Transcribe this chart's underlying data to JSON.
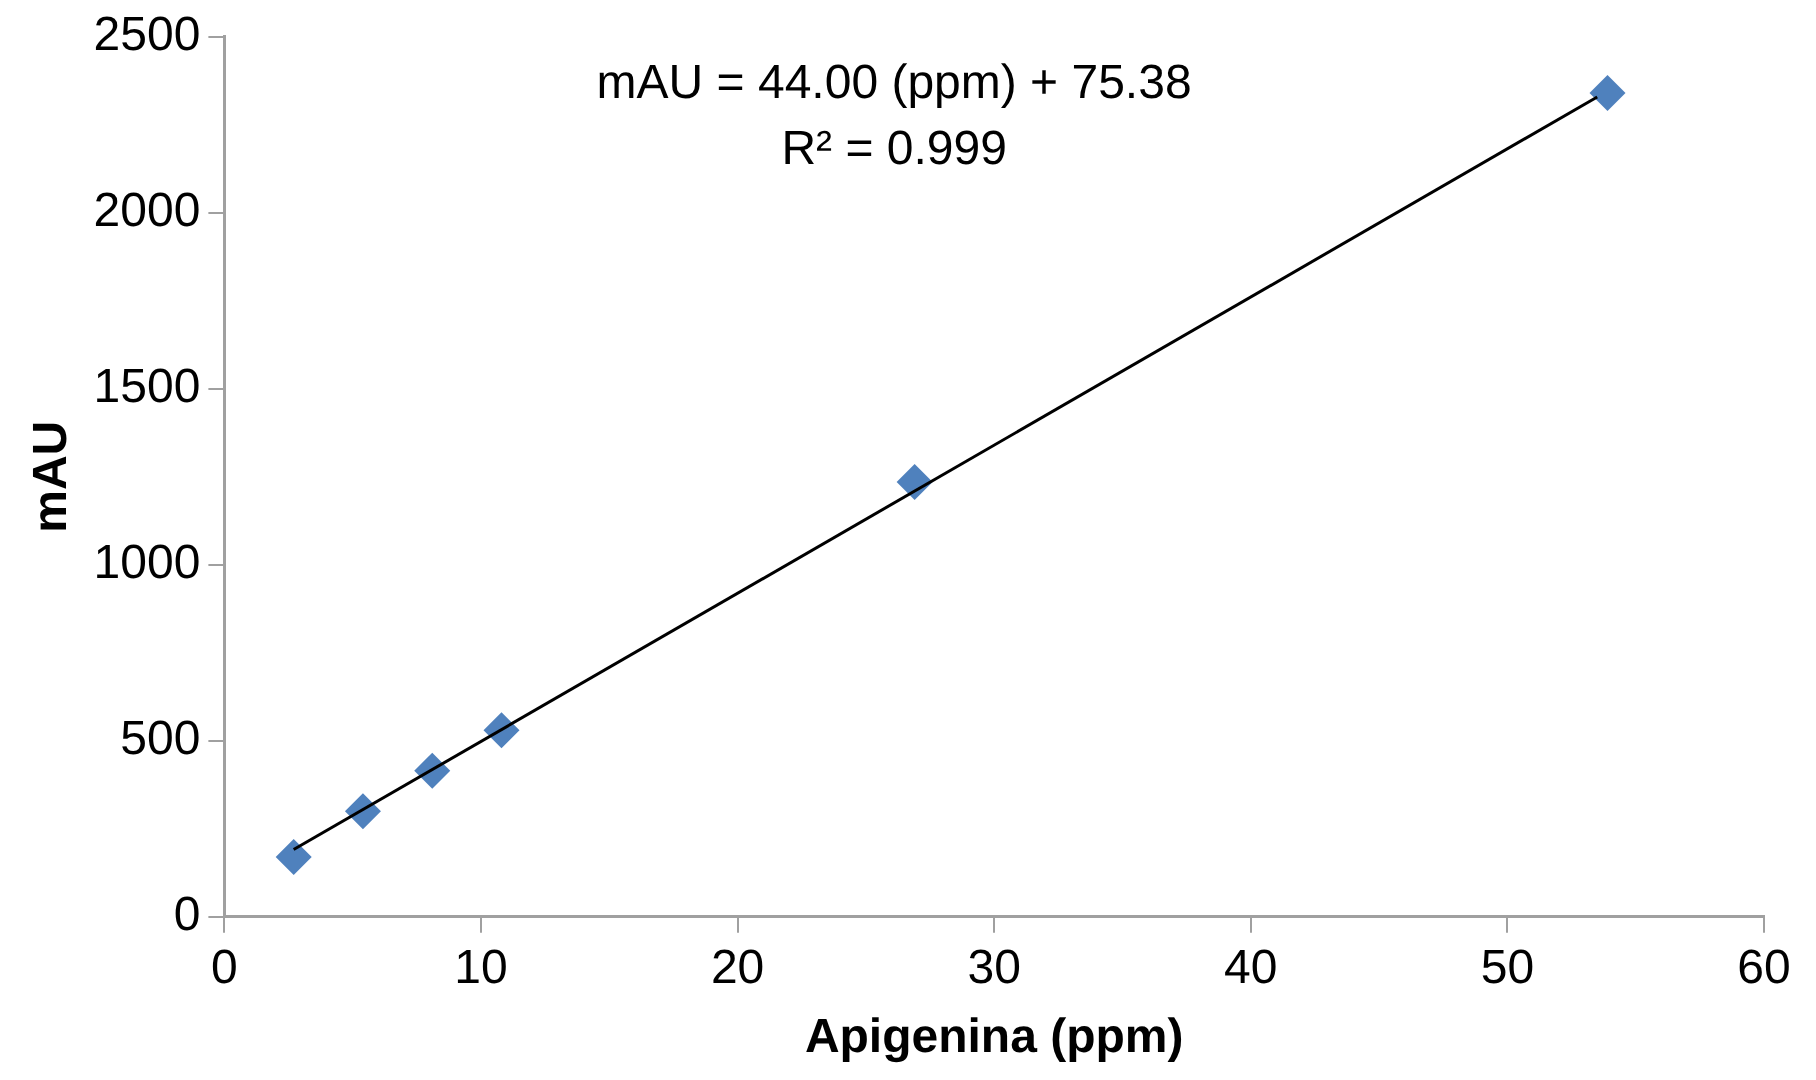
{
  "chart_data": {
    "type": "scatter",
    "xlabel": "Apigenina (ppm)",
    "ylabel": "mAU",
    "annotations": [
      "mAU = 44.00 (ppm) + 75.38",
      "R² = 0.999"
    ],
    "series": [
      {
        "type": "scatter",
        "color": "#4f81bd",
        "marker": "diamond",
        "x": [
          2.7,
          5.4,
          8.1,
          10.8,
          26.9,
          53.9
        ],
        "values": [
          170,
          300,
          415,
          530,
          1235,
          2340
        ]
      },
      {
        "type": "line",
        "color": "#000000",
        "marker": "none",
        "x": [
          2.7,
          53.5
        ],
        "values": [
          191,
          2329
        ]
      }
    ],
    "xlim": [
      0,
      60
    ],
    "xticks": [
      0,
      10,
      20,
      30,
      40,
      50,
      60
    ],
    "ylim": [
      0,
      2500
    ],
    "yticks": [
      0,
      500,
      1000,
      1500,
      2000,
      2500
    ],
    "grid": false,
    "legend": false,
    "line_style": "solid"
  }
}
